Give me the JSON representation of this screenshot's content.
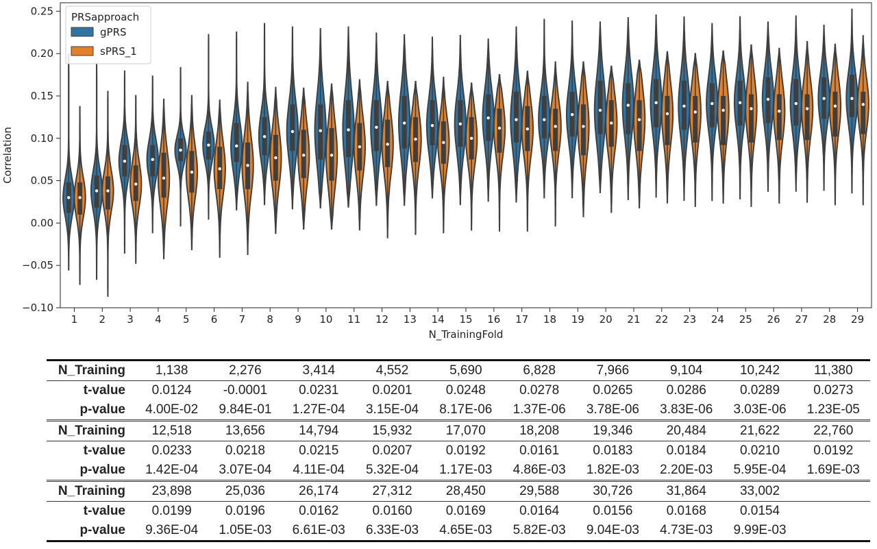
{
  "chart_data": {
    "type": "violin",
    "xlabel": "N_TrainingFold",
    "ylabel": "Correlation",
    "ylim": [
      -0.1,
      0.26
    ],
    "yticks": [
      -0.1,
      -0.05,
      0.0,
      0.05,
      0.1,
      0.15,
      0.2,
      0.25
    ],
    "ytick_labels": [
      "−0.10",
      "−0.05",
      "0.00",
      "0.05",
      "0.10",
      "0.15",
      "0.20",
      "0.25"
    ],
    "categories": [
      "1",
      "2",
      "3",
      "4",
      "5",
      "6",
      "7",
      "8",
      "9",
      "10",
      "11",
      "12",
      "13",
      "14",
      "15",
      "16",
      "17",
      "18",
      "19",
      "20",
      "21",
      "22",
      "23",
      "24",
      "25",
      "26",
      "27",
      "28",
      "29"
    ],
    "legend": {
      "title": "PRSapproach",
      "placement": "upper-left"
    },
    "series": [
      {
        "name": "gPRS",
        "color": "#3274a1",
        "median": [
          0.03,
          0.038,
          0.073,
          0.075,
          0.086,
          0.092,
          0.091,
          0.102,
          0.108,
          0.109,
          0.11,
          0.113,
          0.118,
          0.115,
          0.117,
          0.124,
          0.122,
          0.122,
          0.128,
          0.133,
          0.139,
          0.142,
          0.138,
          0.141,
          0.142,
          0.146,
          0.141,
          0.147,
          0.147
        ],
        "q1": [
          0.012,
          0.018,
          0.055,
          0.055,
          0.073,
          0.075,
          0.072,
          0.08,
          0.085,
          0.075,
          0.078,
          0.085,
          0.088,
          0.092,
          0.09,
          0.097,
          0.095,
          0.1,
          0.102,
          0.105,
          0.105,
          0.113,
          0.11,
          0.113,
          0.115,
          0.118,
          0.115,
          0.123,
          0.125
        ],
        "q3": [
          0.048,
          0.056,
          0.092,
          0.092,
          0.1,
          0.108,
          0.118,
          0.125,
          0.14,
          0.14,
          0.145,
          0.145,
          0.15,
          0.145,
          0.145,
          0.152,
          0.155,
          0.15,
          0.155,
          0.168,
          0.165,
          0.17,
          0.168,
          0.165,
          0.168,
          0.172,
          0.17,
          0.172,
          0.175
        ],
        "min": [
          -0.056,
          -0.067,
          -0.036,
          -0.012,
          -0.004,
          0.004,
          0.015,
          0.022,
          0.017,
          0.018,
          0.019,
          0.021,
          0.021,
          0.029,
          0.022,
          0.026,
          0.025,
          0.029,
          0.03,
          0.036,
          0.027,
          0.03,
          0.027,
          0.026,
          0.028,
          0.037,
          0.037,
          0.038,
          0.035
        ],
        "max": [
          0.2,
          0.189,
          0.18,
          0.174,
          0.184,
          0.223,
          0.226,
          0.236,
          0.232,
          0.23,
          0.232,
          0.224,
          0.222,
          0.22,
          0.222,
          0.217,
          0.232,
          0.241,
          0.239,
          0.237,
          0.243,
          0.246,
          0.243,
          0.236,
          0.244,
          0.237,
          0.245,
          0.234,
          0.253
        ]
      },
      {
        "name": "sPRS_1",
        "color": "#e1812c",
        "median": [
          0.03,
          0.038,
          0.046,
          0.053,
          0.06,
          0.064,
          0.068,
          0.077,
          0.08,
          0.08,
          0.09,
          0.093,
          0.099,
          0.095,
          0.1,
          0.112,
          0.111,
          0.114,
          0.114,
          0.118,
          0.122,
          0.129,
          0.131,
          0.133,
          0.135,
          0.132,
          0.135,
          0.138,
          0.14
        ],
        "q1": [
          0.01,
          0.016,
          0.026,
          0.03,
          0.036,
          0.04,
          0.04,
          0.05,
          0.053,
          0.05,
          0.062,
          0.066,
          0.072,
          0.07,
          0.075,
          0.083,
          0.085,
          0.085,
          0.08,
          0.09,
          0.085,
          0.092,
          0.095,
          0.092,
          0.095,
          0.098,
          0.098,
          0.102,
          0.105
        ],
        "q3": [
          0.048,
          0.055,
          0.068,
          0.083,
          0.085,
          0.09,
          0.095,
          0.104,
          0.11,
          0.112,
          0.118,
          0.122,
          0.125,
          0.12,
          0.125,
          0.135,
          0.138,
          0.135,
          0.14,
          0.145,
          0.145,
          0.15,
          0.15,
          0.15,
          0.152,
          0.152,
          0.152,
          0.155,
          0.155
        ],
        "min": [
          -0.073,
          -0.087,
          -0.048,
          -0.042,
          -0.032,
          -0.041,
          -0.037,
          -0.012,
          -0.007,
          -0.007,
          -0.008,
          -0.018,
          -0.014,
          -0.012,
          -0.009,
          -0.01,
          -0.01,
          -0.004,
          0.007,
          0.012,
          0.018,
          0.024,
          0.019,
          0.023,
          0.019,
          0.023,
          0.024,
          0.021,
          0.021
        ],
        "max": [
          0.138,
          0.156,
          0.151,
          0.146,
          0.151,
          0.145,
          0.166,
          0.16,
          0.159,
          0.164,
          0.169,
          0.167,
          0.167,
          0.172,
          0.165,
          0.175,
          0.179,
          0.19,
          0.19,
          0.185,
          0.192,
          0.202,
          0.2,
          0.203,
          0.21,
          0.206,
          0.214,
          0.211,
          0.221
        ]
      }
    ]
  },
  "table": {
    "row_labels": {
      "n": "N_Training",
      "t": "t-value",
      "p": "p-value"
    },
    "blocks": [
      {
        "n": [
          "1,138",
          "2,276",
          "3,414",
          "4,552",
          "5,690",
          "6,828",
          "7,966",
          "9,104",
          "10,242",
          "11,380"
        ],
        "t": [
          "0.0124",
          "-0.0001",
          "0.0231",
          "0.0201",
          "0.0248",
          "0.0278",
          "0.0265",
          "0.0286",
          "0.0289",
          "0.0273"
        ],
        "p": [
          "4.00E-02",
          "9.84E-01",
          "1.27E-04",
          "3.15E-04",
          "8.17E-06",
          "1.37E-06",
          "3.78E-06",
          "3.83E-06",
          "3.03E-06",
          "1.23E-05"
        ]
      },
      {
        "n": [
          "12,518",
          "13,656",
          "14,794",
          "15,932",
          "17,070",
          "18,208",
          "19,346",
          "20,484",
          "21,622",
          "22,760"
        ],
        "t": [
          "0.0233",
          "0.0218",
          "0.0215",
          "0.0207",
          "0.0192",
          "0.0161",
          "0.0183",
          "0.0184",
          "0.0210",
          "0.0192"
        ],
        "p": [
          "1.42E-04",
          "3.07E-04",
          "4.11E-04",
          "5.32E-04",
          "1.17E-03",
          "4.86E-03",
          "1.82E-03",
          "2.20E-03",
          "5.95E-04",
          "1.69E-03"
        ]
      },
      {
        "n": [
          "23,898",
          "25,036",
          "26,174",
          "27,312",
          "28,450",
          "29,588",
          "30,726",
          "31,864",
          "33,002"
        ],
        "t": [
          "0.0199",
          "0.0196",
          "0.0162",
          "0.0160",
          "0.0169",
          "0.0164",
          "0.0156",
          "0.0168",
          "0.0154"
        ],
        "p": [
          "9.36E-04",
          "1.05E-03",
          "6.61E-03",
          "6.33E-03",
          "4.65E-03",
          "5.82E-03",
          "9.04E-03",
          "4.73E-03",
          "9.99E-03"
        ]
      }
    ]
  }
}
